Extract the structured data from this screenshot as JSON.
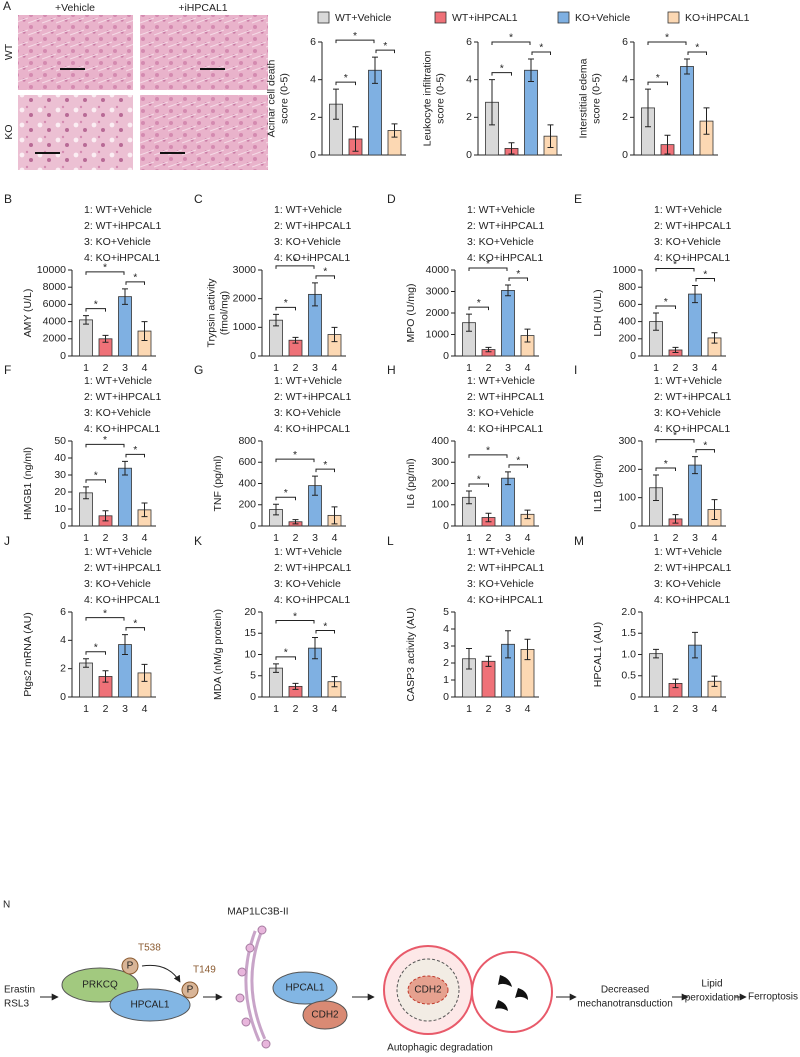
{
  "panel_a": {
    "label": "A",
    "columns": [
      "+Vehicle",
      "+iHPCAL1"
    ],
    "rows": [
      "WT",
      "KO"
    ]
  },
  "legend": [
    {
      "name": "WT+Vehicle",
      "color": "#d9d9d9"
    },
    {
      "name": "WT+iHPCAL1",
      "color": "#ef7178"
    },
    {
      "name": "KO+Vehicle",
      "color": "#7fb0e2"
    },
    {
      "name": "KO+iHPCAL1",
      "color": "#fcd8b3"
    }
  ],
  "chart_data": [
    {
      "type": "bar",
      "ylabel": [
        "Acinar cell death",
        "score (0-5)"
      ],
      "values": [
        2.7,
        0.85,
        4.5,
        1.3
      ],
      "errors": [
        0.8,
        0.65,
        0.7,
        0.35
      ],
      "ylim": [
        0,
        6
      ],
      "yticks": [
        0,
        2,
        4,
        6
      ],
      "annotations": [
        "*",
        "*",
        "*"
      ]
    },
    {
      "type": "bar",
      "ylabel": [
        "Leukocyte infiltration",
        "score (0-5)"
      ],
      "values": [
        2.8,
        0.35,
        4.5,
        1.0
      ],
      "errors": [
        1.2,
        0.3,
        0.6,
        0.6
      ],
      "ylim": [
        0,
        6
      ],
      "yticks": [
        0,
        2,
        4,
        6
      ],
      "annotations": [
        "*",
        "*",
        "*"
      ]
    },
    {
      "type": "bar",
      "ylabel": [
        "Interstitial edema",
        "score (0-5)"
      ],
      "values": [
        2.5,
        0.55,
        4.7,
        1.8
      ],
      "errors": [
        1.0,
        0.5,
        0.4,
        0.7
      ],
      "ylim": [
        0,
        6
      ],
      "yticks": [
        0,
        2,
        4,
        6
      ],
      "annotations": [
        "*",
        "*",
        "*"
      ]
    },
    {
      "type": "bar",
      "panel": "B",
      "key": [
        "1: WT+Vehicle",
        "2: WT+iHPCAL1",
        "3: KO+Vehicle",
        "4: KO+iHPCAL1"
      ],
      "ylabel": [
        "AMY (U/L)"
      ],
      "categories": [
        "1",
        "2",
        "3",
        "4"
      ],
      "values": [
        4200,
        2000,
        6900,
        2900
      ],
      "errors": [
        500,
        400,
        900,
        1100
      ],
      "ylim": [
        0,
        10000
      ],
      "yticks": [
        0,
        2000,
        4000,
        6000,
        8000,
        10000
      ],
      "annotations": [
        "*",
        "*",
        "*"
      ]
    },
    {
      "type": "bar",
      "panel": "C",
      "key": [
        "1: WT+Vehicle",
        "2: WT+iHPCAL1",
        "3: KO+Vehicle",
        "4: KO+iHPCAL1"
      ],
      "ylabel": [
        "Trypsin activity",
        "(fmol/mg)"
      ],
      "categories": [
        "1",
        "2",
        "3",
        "4"
      ],
      "values": [
        1250,
        550,
        2150,
        750
      ],
      "errors": [
        200,
        100,
        400,
        250
      ],
      "ylim": [
        0,
        3000
      ],
      "yticks": [
        0,
        1000,
        2000,
        3000
      ],
      "annotations": [
        "*",
        "*",
        "*"
      ]
    },
    {
      "type": "bar",
      "panel": "D",
      "key": [
        "1: WT+Vehicle",
        "2: WT+iHPCAL1",
        "3: KO+Vehicle",
        "4: KO+iHPCAL1"
      ],
      "ylabel": [
        "MPO (U/mg)"
      ],
      "categories": [
        "1",
        "2",
        "3",
        "4"
      ],
      "values": [
        1550,
        300,
        3050,
        950
      ],
      "errors": [
        400,
        100,
        250,
        300
      ],
      "ylim": [
        0,
        4000
      ],
      "yticks": [
        0,
        1000,
        2000,
        3000,
        4000
      ],
      "annotations": [
        "*",
        "*",
        "*"
      ]
    },
    {
      "type": "bar",
      "panel": "E",
      "key": [
        "1: WT+Vehicle",
        "2: WT+iHPCAL1",
        "3: KO+Vehicle",
        "4: KO+iHPCAL1"
      ],
      "ylabel": [
        "LDH (U/L)"
      ],
      "categories": [
        "1",
        "2",
        "3",
        "4"
      ],
      "values": [
        400,
        70,
        720,
        210
      ],
      "errors": [
        100,
        30,
        100,
        60
      ],
      "ylim": [
        0,
        1000
      ],
      "yticks": [
        0,
        200,
        400,
        600,
        800,
        1000
      ],
      "annotations": [
        "*",
        "*",
        "*"
      ]
    },
    {
      "type": "bar",
      "panel": "F",
      "key": [
        "1: WT+Vehicle",
        "2: WT+iHPCAL1",
        "3: KO+Vehicle",
        "4: KO+iHPCAL1"
      ],
      "ylabel": [
        "HMGB1 (ng/ml)"
      ],
      "categories": [
        "1",
        "2",
        "3",
        "4"
      ],
      "values": [
        19.5,
        6,
        34,
        9.5
      ],
      "errors": [
        3.5,
        3,
        4,
        4
      ],
      "ylim": [
        0,
        50
      ],
      "yticks": [
        0,
        10,
        20,
        30,
        40,
        50
      ],
      "annotations": [
        "*",
        "*",
        "*"
      ]
    },
    {
      "type": "bar",
      "panel": "G",
      "key": [
        "1: WT+Vehicle",
        "2: WT+iHPCAL1",
        "3: KO+Vehicle",
        "4: KO+iHPCAL1"
      ],
      "ylabel": [
        "TNF (pg/ml)"
      ],
      "categories": [
        "1",
        "2",
        "3",
        "4"
      ],
      "values": [
        155,
        40,
        380,
        100
      ],
      "errors": [
        50,
        20,
        90,
        80
      ],
      "ylim": [
        0,
        800
      ],
      "yticks": [
        0,
        200,
        400,
        600,
        800
      ],
      "annotations": [
        "*",
        "*",
        "*"
      ]
    },
    {
      "type": "bar",
      "panel": "H",
      "key": [
        "1: WT+Vehicle",
        "2: WT+iHPCAL1",
        "3: KO+Vehicle",
        "4: KO+iHPCAL1"
      ],
      "ylabel": [
        "IL6 (pg/ml)"
      ],
      "categories": [
        "1",
        "2",
        "3",
        "4"
      ],
      "values": [
        135,
        40,
        225,
        55
      ],
      "errors": [
        30,
        20,
        30,
        20
      ],
      "ylim": [
        0,
        400
      ],
      "yticks": [
        0,
        100,
        200,
        300,
        400
      ],
      "annotations": [
        "*",
        "*",
        "*"
      ]
    },
    {
      "type": "bar",
      "panel": "I",
      "key": [
        "1: WT+Vehicle",
        "2: WT+iHPCAL1",
        "3: KO+Vehicle",
        "4: KO+iHPCAL1"
      ],
      "ylabel": [
        "IL1B (pg/ml)"
      ],
      "categories": [
        "1",
        "2",
        "3",
        "4"
      ],
      "values": [
        135,
        25,
        215,
        58
      ],
      "errors": [
        45,
        15,
        30,
        35
      ],
      "ylim": [
        0,
        300
      ],
      "yticks": [
        0,
        100,
        200,
        300
      ],
      "annotations": [
        "*",
        "*",
        "*"
      ]
    },
    {
      "type": "bar",
      "panel": "J",
      "key": [
        "1: WT+Vehicle",
        "2: WT+iHPCAL1",
        "3: KO+Vehicle",
        "4: KO+iHPCAL1"
      ],
      "ylabel": [
        "Ptgs2 mRNA (AU)"
      ],
      "categories": [
        "1",
        "2",
        "3",
        "4"
      ],
      "values": [
        2.4,
        1.45,
        3.7,
        1.7
      ],
      "errors": [
        0.3,
        0.4,
        0.7,
        0.6
      ],
      "ylim": [
        0,
        6
      ],
      "yticks": [
        0,
        2,
        4,
        6
      ],
      "annotations": [
        "*",
        "*",
        "*"
      ]
    },
    {
      "type": "bar",
      "panel": "K",
      "key": [
        "1: WT+Vehicle",
        "2: WT+iHPCAL1",
        "3: KO+Vehicle",
        "4: KO+iHPCAL1"
      ],
      "ylabel": [
        "MDA (nM/g protein)"
      ],
      "categories": [
        "1",
        "2",
        "3",
        "4"
      ],
      "values": [
        6.8,
        2.5,
        11.5,
        3.6
      ],
      "errors": [
        1,
        0.7,
        2.5,
        1.2
      ],
      "ylim": [
        0,
        20
      ],
      "yticks": [
        0,
        5,
        10,
        15,
        20
      ],
      "annotations": [
        "*",
        "*",
        "*"
      ]
    },
    {
      "type": "bar",
      "panel": "L",
      "key": [
        "1: WT+Vehicle",
        "2: WT+iHPCAL1",
        "3: KO+Vehicle",
        "4: KO+iHPCAL1"
      ],
      "ylabel": [
        "CASP3 activity (AU)"
      ],
      "categories": [
        "1",
        "2",
        "3",
        "4"
      ],
      "values": [
        2.25,
        2.1,
        3.1,
        2.8
      ],
      "errors": [
        0.6,
        0.3,
        0.8,
        0.6
      ],
      "ylim": [
        0,
        5
      ],
      "yticks": [
        0,
        1,
        2,
        3,
        4,
        5
      ]
    },
    {
      "type": "bar",
      "panel": "M",
      "key": [
        "1: WT+Vehicle",
        "2: WT+iHPCAL1",
        "3: KO+Vehicle",
        "4: KO+iHPCAL1"
      ],
      "ylabel": [
        "HPCAL1 (AU)"
      ],
      "categories": [
        "1",
        "2",
        "3",
        "4"
      ],
      "values": [
        1.02,
        0.32,
        1.22,
        0.37
      ],
      "errors": [
        0.1,
        0.1,
        0.3,
        0.12
      ],
      "ylim": [
        0,
        2
      ],
      "yticks": [
        0,
        0.5,
        {
          "value": 1,
          "label": "1.0"
        },
        1.5,
        {
          "value": 2,
          "label": "2.0"
        }
      ]
    }
  ],
  "panel_n": {
    "label": "N",
    "inducers": [
      "Erastin",
      "RSL3"
    ],
    "kinase": "PRKCQ",
    "phospho": [
      "P",
      "P"
    ],
    "sites": [
      "T538",
      "T149"
    ],
    "lc3": "MAP1LC3B-II",
    "proteins": [
      "HPCAL1",
      "HPCAL1",
      "CDH2",
      "CDH2"
    ],
    "process": "Autophagic degradation",
    "steps": [
      [
        "Decreased",
        "mechanotransduction"
      ],
      [
        "Lipid",
        "peroxidation"
      ],
      [
        "Ferroptosis"
      ]
    ]
  }
}
